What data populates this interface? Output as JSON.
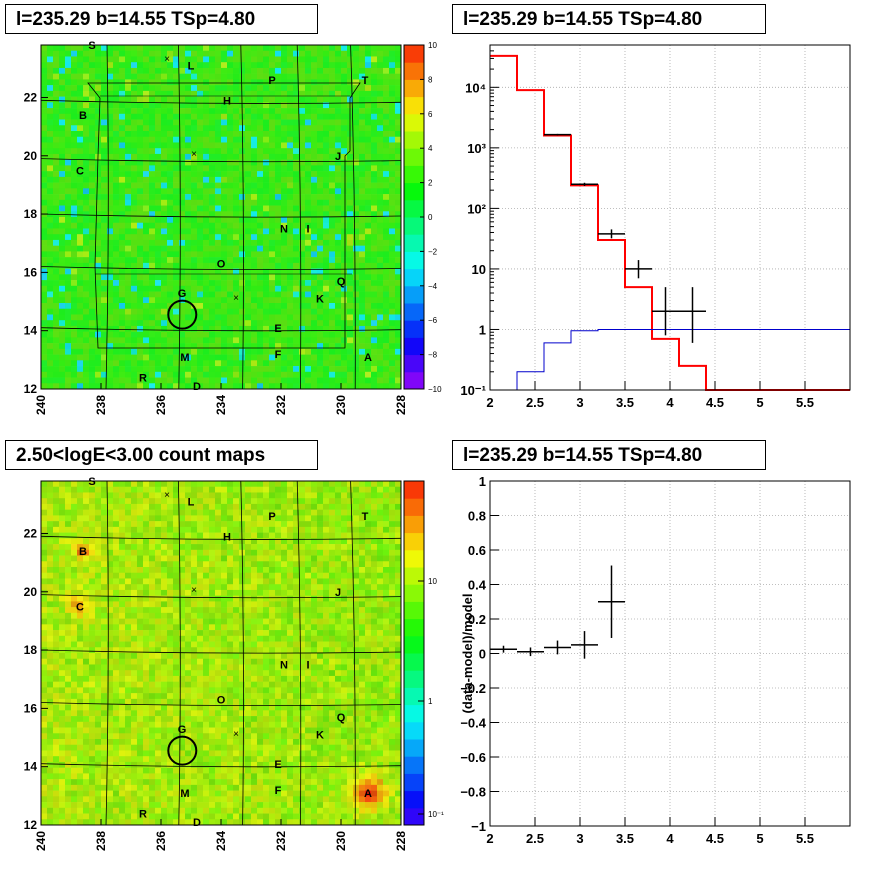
{
  "titles": {
    "tl": "l=235.29 b=14.55 TSp=4.80",
    "tr": "l=235.29 b=14.55 TSp=4.80",
    "bl": "2.50<logE<3.00 count maps",
    "br": "l=235.29 b=14.55 TSp=4.80"
  },
  "colors": {
    "map_green": "#3fd43f",
    "model_red": "#ff0000",
    "bkg_blue": "#0000cc",
    "data": "#000000"
  },
  "chart_data": [
    {
      "type": "heatmap",
      "panel": "top-left residual significance map",
      "x_ticks": [
        "240",
        "238",
        "236",
        "234",
        "232",
        "230",
        "228"
      ],
      "y_ticks": [
        "12",
        "14",
        "16",
        "18",
        "20",
        "22"
      ],
      "xlim": [
        240,
        228
      ],
      "ylim": [
        12,
        23.8
      ],
      "colorbar": {
        "min": -10,
        "max": 10,
        "ticks": [
          "10",
          "8",
          "6",
          "4",
          "2",
          "0",
          "−2",
          "−4",
          "−6",
          "−8",
          "−10"
        ]
      },
      "sources": [
        {
          "label": "S",
          "l": 238.3,
          "b": 23.8
        },
        {
          "label": "L",
          "l": 235.0,
          "b": 23.1
        },
        {
          "label": "P",
          "l": 232.3,
          "b": 22.6
        },
        {
          "label": "T",
          "l": 229.2,
          "b": 22.6
        },
        {
          "label": "H",
          "l": 233.8,
          "b": 21.9
        },
        {
          "label": "B",
          "l": 238.6,
          "b": 21.4
        },
        {
          "label": "J",
          "l": 230.1,
          "b": 20.0
        },
        {
          "label": "C",
          "l": 238.7,
          "b": 19.5
        },
        {
          "label": "N",
          "l": 231.9,
          "b": 17.5
        },
        {
          "label": "I",
          "l": 231.1,
          "b": 17.5
        },
        {
          "label": "O",
          "l": 234.0,
          "b": 16.3
        },
        {
          "label": "Q",
          "l": 230.0,
          "b": 15.7
        },
        {
          "label": "G",
          "l": 235.3,
          "b": 15.3
        },
        {
          "label": "K",
          "l": 230.7,
          "b": 15.1
        },
        {
          "label": "E",
          "l": 232.1,
          "b": 14.1
        },
        {
          "label": "M",
          "l": 235.2,
          "b": 13.1
        },
        {
          "label": "F",
          "l": 232.1,
          "b": 13.2
        },
        {
          "label": "A",
          "l": 229.1,
          "b": 13.1
        },
        {
          "label": "R",
          "l": 236.6,
          "b": 12.4
        },
        {
          "label": "D",
          "l": 234.8,
          "b": 12.1
        }
      ],
      "target": {
        "l": 235.29,
        "b": 14.55
      }
    },
    {
      "type": "line",
      "panel": "top-right counts spectrum",
      "yscale": "log",
      "xlim": [
        2,
        6
      ],
      "ylim": [
        0.1,
        50000
      ],
      "x_ticks": [
        "2",
        "2.5",
        "3",
        "3.5",
        "4",
        "4.5",
        "5",
        "5.5"
      ],
      "y_ticks": [
        "10⁻¹",
        "1",
        "10",
        "10²",
        "10³",
        "10⁴"
      ],
      "bin_edges": [
        2.0,
        2.3,
        2.6,
        2.9,
        3.2,
        3.5,
        3.8,
        4.1,
        4.4,
        6.0
      ],
      "series": [
        {
          "values": [
            33000,
            9000,
            1600,
            240,
            30,
            5,
            0.7,
            0.25,
            0.1
          ]
        },
        {
          "values": [
            0.08,
            0.2,
            0.6,
            0.95,
            1.0,
            1.0,
            1.0,
            1.0,
            1.0
          ]
        }
      ],
      "data_points": [
        {
          "x": 2.75,
          "y": 1650,
          "xerr": 0.15,
          "ylo": 1600,
          "yhi": 1700
        },
        {
          "x": 3.05,
          "y": 250,
          "xerr": 0.15,
          "ylo": 235,
          "yhi": 265
        },
        {
          "x": 3.35,
          "y": 38,
          "xerr": 0.15,
          "ylo": 32,
          "yhi": 45
        },
        {
          "x": 3.65,
          "y": 10,
          "xerr": 0.15,
          "ylo": 7,
          "yhi": 14
        },
        {
          "x": 3.95,
          "y": 2,
          "xerr": 0.15,
          "ylo": 0.8,
          "yhi": 5
        },
        {
          "x": 4.25,
          "y": 2,
          "xerr": 0.15,
          "ylo": 0.6,
          "yhi": 5
        }
      ]
    },
    {
      "type": "heatmap",
      "panel": "bottom-left count map",
      "x_ticks": [
        "240",
        "238",
        "236",
        "234",
        "232",
        "230",
        "228"
      ],
      "y_ticks": [
        "12",
        "14",
        "16",
        "18",
        "20",
        "22"
      ],
      "xlim": [
        240,
        228
      ],
      "ylim": [
        12,
        23.8
      ],
      "colorbar": {
        "scale": "log",
        "ticks": [
          "10",
          "1",
          "10⁻¹"
        ]
      },
      "sources": [
        {
          "label": "S",
          "l": 238.3,
          "b": 23.8
        },
        {
          "label": "L",
          "l": 235.0,
          "b": 23.1
        },
        {
          "label": "P",
          "l": 232.3,
          "b": 22.6
        },
        {
          "label": "T",
          "l": 229.2,
          "b": 22.6
        },
        {
          "label": "H",
          "l": 233.8,
          "b": 21.9
        },
        {
          "label": "B",
          "l": 238.6,
          "b": 21.4
        },
        {
          "label": "J",
          "l": 230.1,
          "b": 20.0
        },
        {
          "label": "C",
          "l": 238.7,
          "b": 19.5
        },
        {
          "label": "N",
          "l": 231.9,
          "b": 17.5
        },
        {
          "label": "I",
          "l": 231.1,
          "b": 17.5
        },
        {
          "label": "O",
          "l": 234.0,
          "b": 16.3
        },
        {
          "label": "Q",
          "l": 230.0,
          "b": 15.7
        },
        {
          "label": "G",
          "l": 235.3,
          "b": 15.3
        },
        {
          "label": "K",
          "l": 230.7,
          "b": 15.1
        },
        {
          "label": "E",
          "l": 232.1,
          "b": 14.1
        },
        {
          "label": "M",
          "l": 235.2,
          "b": 13.1
        },
        {
          "label": "F",
          "l": 232.1,
          "b": 13.2
        },
        {
          "label": "A",
          "l": 229.1,
          "b": 13.1
        },
        {
          "label": "R",
          "l": 236.6,
          "b": 12.4
        },
        {
          "label": "D",
          "l": 234.8,
          "b": 12.1
        }
      ],
      "target": {
        "l": 235.29,
        "b": 14.55
      }
    },
    {
      "type": "scatter",
      "panel": "bottom-right residuals",
      "ylabel": "(data-model)/model",
      "xlim": [
        2,
        6
      ],
      "ylim": [
        -1,
        1
      ],
      "x_ticks": [
        "2",
        "2.5",
        "3",
        "3.5",
        "4",
        "4.5",
        "5",
        "5.5"
      ],
      "y_ticks": [
        "1",
        "0.8",
        "0.6",
        "0.4",
        "0.2",
        "0",
        "−0.2",
        "−0.4",
        "−0.6",
        "−0.8",
        "−1"
      ],
      "points": [
        {
          "x": 2.15,
          "y": 0.025,
          "xerr": 0.15,
          "yerr": 0.02
        },
        {
          "x": 2.45,
          "y": 0.01,
          "xerr": 0.15,
          "yerr": 0.025
        },
        {
          "x": 2.75,
          "y": 0.035,
          "xerr": 0.15,
          "yerr": 0.04
        },
        {
          "x": 3.05,
          "y": 0.05,
          "xerr": 0.15,
          "yerr": 0.08
        },
        {
          "x": 3.35,
          "y": 0.3,
          "xerr": 0.15,
          "yerr": 0.21
        }
      ]
    }
  ]
}
